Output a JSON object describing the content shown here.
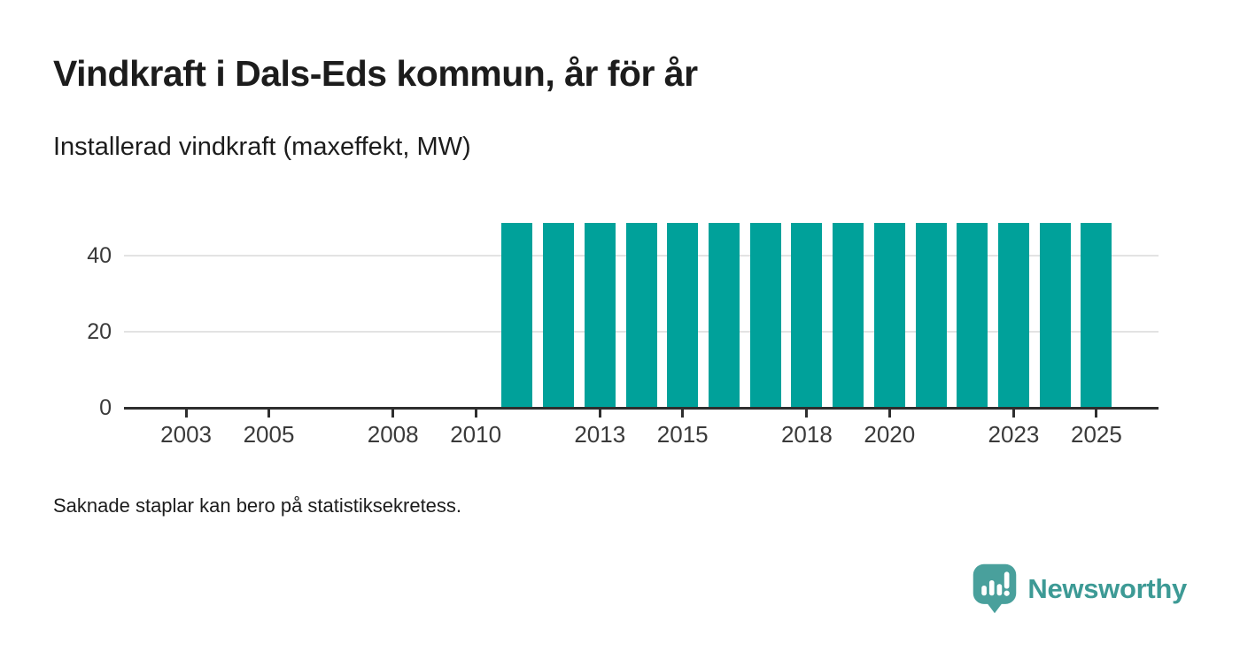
{
  "header": {
    "title": "Vindkraft i Dals-Eds kommun, år för år",
    "subtitle": "Installerad vindkraft (maxeffekt, MW)"
  },
  "footnote": "Saknade staplar kan bero på statistiksekretess.",
  "branding": {
    "name": "Newsworthy",
    "icon": "bar-chart-speech-bubble-icon",
    "icon_color": "#49a09c",
    "text_color": "#3d9a95"
  },
  "colors": {
    "bar": "#00a19a",
    "axis": "#2e2e2e",
    "gridline": "#e3e3e3",
    "text": "#1c1c1c",
    "tick_label": "#3a3a3a",
    "background": "#ffffff"
  },
  "chart_data": {
    "type": "bar",
    "title": "Vindkraft i Dals-Eds kommun, år för år",
    "subtitle": "Installerad vindkraft (maxeffekt, MW)",
    "ylabel": "Installerad vindkraft (maxeffekt, MW)",
    "xlabel": "",
    "x": [
      2002,
      2003,
      2004,
      2005,
      2006,
      2007,
      2008,
      2009,
      2010,
      2011,
      2012,
      2013,
      2014,
      2015,
      2016,
      2017,
      2018,
      2019,
      2020,
      2021,
      2022,
      2023,
      2024,
      2025
    ],
    "values": [
      null,
      null,
      null,
      null,
      null,
      null,
      null,
      null,
      null,
      48.5,
      48.5,
      48.5,
      48.5,
      48.5,
      48.5,
      48.5,
      48.5,
      48.5,
      48.5,
      48.5,
      48.5,
      48.5,
      48.5,
      48.5
    ],
    "x_ticks": [
      2003,
      2005,
      2008,
      2010,
      2013,
      2015,
      2018,
      2020,
      2023,
      2025
    ],
    "y_ticks": [
      0,
      20,
      40
    ],
    "ylim": [
      0,
      50
    ],
    "band_domain": [
      2002,
      2026
    ],
    "grid": "horizontal-only",
    "legend": "none",
    "bar_color": "#00a19a",
    "note": "Missing bars 2002-2010; constant ~48.5 MW from 2011 through 2025"
  }
}
